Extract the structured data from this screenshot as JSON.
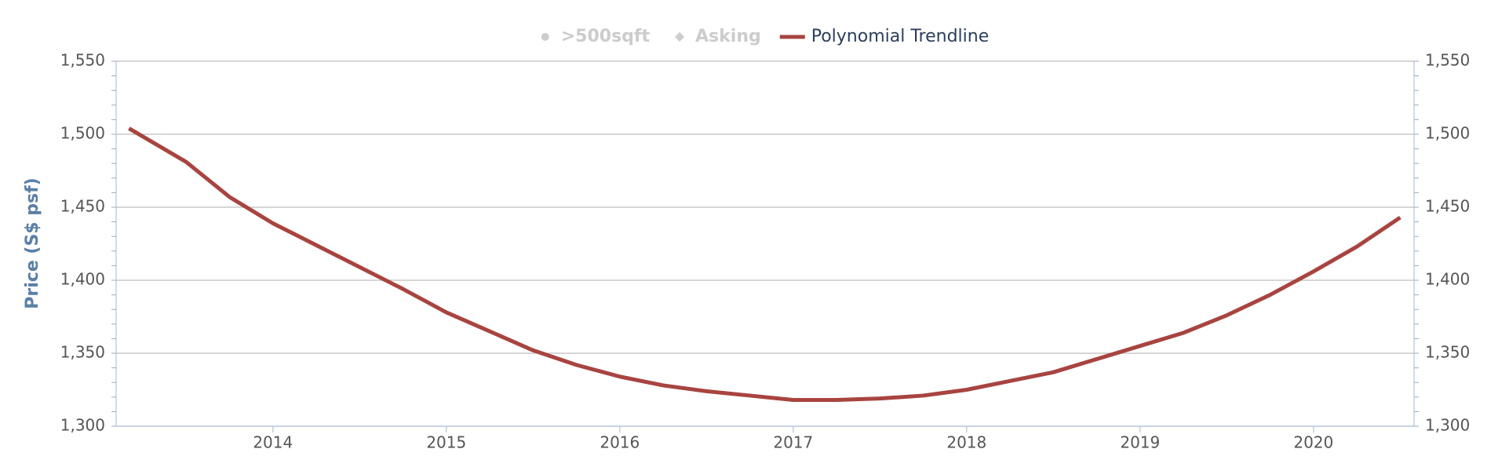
{
  "chart_data": {
    "type": "line",
    "y_axis_label": "Price (S$ psf)",
    "x": [
      2013.17,
      2013.5,
      2013.75,
      2014.0,
      2014.25,
      2014.5,
      2014.75,
      2015.0,
      2015.25,
      2015.5,
      2015.75,
      2016.0,
      2016.25,
      2016.5,
      2016.75,
      2017.0,
      2017.25,
      2017.5,
      2017.75,
      2018.0,
      2018.25,
      2018.5,
      2018.75,
      2019.0,
      2019.25,
      2019.5,
      2019.75,
      2020.0,
      2020.25,
      2020.5
    ],
    "series": [
      {
        "name": ">500sqft",
        "color": "#cccccc",
        "marker": "circle",
        "visible": false
      },
      {
        "name": "Asking",
        "color": "#cccccc",
        "marker": "diamond",
        "visible": false
      },
      {
        "name": "Polynomial Trendline",
        "color": "#a84440",
        "visible": true,
        "values": [
          1504,
          1481,
          1457,
          1439,
          1424,
          1409,
          1394,
          1378,
          1365,
          1352,
          1342,
          1334,
          1328,
          1324,
          1321,
          1318,
          1318,
          1319,
          1321,
          1325,
          1331,
          1337,
          1346,
          1355,
          1364,
          1376,
          1390,
          1406,
          1423,
          1443
        ]
      }
    ],
    "xlim": [
      2013.096,
      2020.58
    ],
    "xticks": [
      2014,
      2015,
      2016,
      2017,
      2018,
      2019,
      2020
    ],
    "ylim": [
      1300,
      1550
    ],
    "yticks": [
      {
        "value": 1300,
        "label": "1,300"
      },
      {
        "value": 1350,
        "label": "1,350"
      },
      {
        "value": 1400,
        "label": "1,400"
      },
      {
        "value": 1450,
        "label": "1,450"
      },
      {
        "value": 1500,
        "label": "1,500"
      },
      {
        "value": 1550,
        "label": "1,550"
      }
    ],
    "yminor_step": 10,
    "grid": true,
    "right_axis_mirror": true,
    "legend_position": "top"
  }
}
